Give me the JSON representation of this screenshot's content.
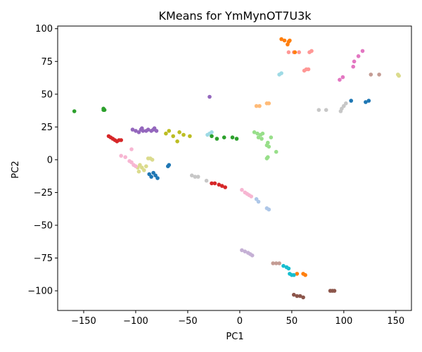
{
  "chart_data": {
    "type": "scatter",
    "title": "KMeans for YmMynOT7U3k",
    "xlabel": "PC1",
    "ylabel": "PC2",
    "xlim": [
      -175,
      165
    ],
    "ylim": [
      -115,
      102
    ],
    "xticks": [
      -150,
      -100,
      -50,
      0,
      50,
      100,
      150
    ],
    "yticks": [
      -100,
      -75,
      -50,
      -25,
      0,
      25,
      50,
      75,
      100
    ],
    "grid": false,
    "legend": "none",
    "series": [
      {
        "color": "#2ca02c",
        "points": [
          [
            -159,
            37
          ],
          [
            -131,
            38
          ],
          [
            -130,
            38
          ],
          [
            -131,
            39
          ]
        ]
      },
      {
        "color": "#9467bd",
        "points": [
          [
            -29,
            48
          ],
          [
            -100,
            22
          ],
          [
            -97,
            21
          ],
          [
            -95,
            23
          ],
          [
            -94,
            24
          ],
          [
            -93,
            22
          ],
          [
            -90,
            22
          ],
          [
            -88,
            23
          ],
          [
            -85,
            22
          ],
          [
            -83,
            23
          ],
          [
            -82,
            24
          ],
          [
            -80,
            22
          ],
          [
            -103,
            23
          ]
        ]
      },
      {
        "color": "#d62728",
        "points": [
          [
            -126,
            18
          ],
          [
            -124,
            17
          ],
          [
            -122,
            16
          ],
          [
            -120,
            15
          ],
          [
            -118,
            14
          ],
          [
            -116,
            15
          ],
          [
            -114,
            15
          ],
          [
            -27,
            -18
          ],
          [
            -24,
            -18
          ],
          [
            -20,
            -19
          ],
          [
            -17,
            -20
          ],
          [
            -14,
            -21
          ]
        ]
      },
      {
        "color": "#ff9896",
        "points": [
          [
            47,
            82
          ],
          [
            52,
            82
          ],
          [
            57,
            82
          ],
          [
            62,
            68
          ],
          [
            64,
            69
          ],
          [
            66,
            69
          ],
          [
            67,
            82
          ],
          [
            69,
            83
          ]
        ]
      },
      {
        "color": "#ff7f0e",
        "points": [
          [
            40,
            92
          ],
          [
            43,
            91
          ],
          [
            46,
            88
          ],
          [
            47,
            90
          ],
          [
            48,
            91
          ],
          [
            53,
            82
          ],
          [
            55,
            -87
          ],
          [
            61,
            -87
          ],
          [
            63,
            -88
          ]
        ]
      },
      {
        "color": "#9edae5",
        "points": [
          [
            38,
            65
          ],
          [
            40,
            66
          ],
          [
            -31,
            19
          ],
          [
            -29,
            20
          ],
          [
            -27,
            21
          ]
        ]
      },
      {
        "color": "#ffbb78",
        "points": [
          [
            16,
            41
          ],
          [
            19,
            41
          ],
          [
            26,
            43
          ],
          [
            28,
            43
          ]
        ]
      },
      {
        "color": "#c7c7c7",
        "points": [
          [
            76,
            38
          ],
          [
            83,
            38
          ],
          [
            97,
            37
          ],
          [
            98,
            39
          ],
          [
            100,
            41
          ],
          [
            102,
            43
          ],
          [
            -46,
            -12
          ],
          [
            -43,
            -13
          ],
          [
            -40,
            -13
          ],
          [
            -32,
            -16
          ]
        ]
      },
      {
        "color": "#1f77b4",
        "points": [
          [
            107,
            45
          ],
          [
            121,
            44
          ],
          [
            124,
            45
          ],
          [
            -87,
            -11
          ],
          [
            -85,
            -13
          ],
          [
            -83,
            -10
          ],
          [
            -81,
            -12
          ],
          [
            -79,
            -14
          ],
          [
            -69,
            -5
          ],
          [
            -68,
            -4
          ]
        ]
      },
      {
        "color": "#e377c2",
        "points": [
          [
            96,
            61
          ],
          [
            99,
            63
          ],
          [
            109,
            71
          ],
          [
            110,
            75
          ],
          [
            114,
            79
          ],
          [
            118,
            83
          ]
        ]
      },
      {
        "color": "#c49c94",
        "points": [
          [
            126,
            65
          ],
          [
            134,
            65
          ],
          [
            32,
            -79
          ],
          [
            35,
            -79
          ],
          [
            38,
            -79
          ]
        ]
      },
      {
        "color": "#dbdb8d",
        "points": [
          [
            152,
            65
          ],
          [
            153,
            64
          ],
          [
            -96,
            -4
          ],
          [
            -94,
            -6
          ],
          [
            -92,
            -8
          ],
          [
            -90,
            -5
          ],
          [
            -97,
            -9
          ],
          [
            -88,
            1
          ],
          [
            -86,
            1
          ],
          [
            -84,
            0
          ],
          [
            -98,
            -6
          ]
        ]
      },
      {
        "color": "#bcbd22",
        "points": [
          [
            -71,
            20
          ],
          [
            -68,
            22
          ],
          [
            -64,
            18
          ],
          [
            -60,
            14
          ],
          [
            -58,
            21
          ],
          [
            -54,
            19
          ],
          [
            -48,
            18
          ]
        ]
      },
      {
        "color": "#2ca02c",
        "points": [
          [
            -27,
            18
          ],
          [
            -22,
            16
          ],
          [
            -15,
            17
          ],
          [
            -7,
            17
          ],
          [
            -3,
            16
          ]
        ]
      },
      {
        "color": "#98df8a",
        "points": [
          [
            14,
            21
          ],
          [
            17,
            20
          ],
          [
            18,
            17
          ],
          [
            20,
            19
          ],
          [
            21,
            16
          ],
          [
            22,
            20
          ],
          [
            26,
            11
          ],
          [
            27,
            13
          ],
          [
            28,
            10
          ],
          [
            30,
            17
          ],
          [
            26,
            1
          ],
          [
            27,
            2
          ],
          [
            35,
            6
          ]
        ]
      },
      {
        "color": "#f7b6d2",
        "points": [
          [
            -114,
            3
          ],
          [
            -110,
            2
          ],
          [
            -104,
            8
          ],
          [
            -106,
            -1
          ],
          [
            -104,
            -2
          ],
          [
            -102,
            -4
          ],
          [
            -100,
            -5
          ],
          [
            2,
            -23
          ],
          [
            5,
            -25
          ],
          [
            7,
            -26
          ],
          [
            9,
            -27
          ],
          [
            11,
            -28
          ]
        ]
      },
      {
        "color": "#aec7e8",
        "points": [
          [
            16,
            -30
          ],
          [
            18,
            -32
          ],
          [
            26,
            -37
          ],
          [
            28,
            -38
          ]
        ]
      },
      {
        "color": "#c5b0d5",
        "points": [
          [
            2,
            -69
          ],
          [
            5,
            -70
          ],
          [
            8,
            -71
          ],
          [
            10,
            -72
          ],
          [
            12,
            -73
          ]
        ]
      },
      {
        "color": "#17becf",
        "points": [
          [
            42,
            -81
          ],
          [
            45,
            -82
          ],
          [
            47,
            -83
          ],
          [
            48,
            -87
          ],
          [
            50,
            -88
          ],
          [
            52,
            -88
          ]
        ]
      },
      {
        "color": "#8c564b",
        "points": [
          [
            52,
            -103
          ],
          [
            55,
            -104
          ],
          [
            58,
            -104
          ],
          [
            61,
            -105
          ],
          [
            87,
            -100
          ],
          [
            89,
            -100
          ],
          [
            91,
            -100
          ]
        ]
      }
    ]
  }
}
